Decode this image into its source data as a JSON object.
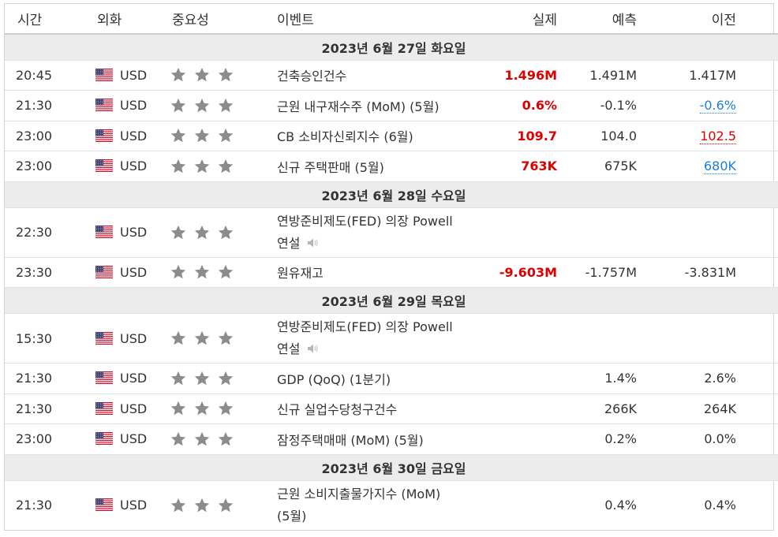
{
  "columns": {
    "time": "시간",
    "currency": "외화",
    "importance": "중요성",
    "event": "이벤트",
    "actual": "실제",
    "forecast": "예측",
    "previous": "이전"
  },
  "colors": {
    "actual_red": "#dd0000",
    "revised_blue": "#1a7fd6",
    "star_gray": "#8c8c8c",
    "date_bg": "#ececec"
  },
  "groups": [
    {
      "date": "2023년 6월 27일 화요일",
      "events": [
        {
          "time": "20:45",
          "currency": "USD",
          "stars": 3,
          "title": "건축승인건수",
          "actual": "1.496M",
          "forecast": "1.491M",
          "previous": "1.417M",
          "previous_style": "",
          "speech": false
        },
        {
          "time": "21:30",
          "currency": "USD",
          "stars": 3,
          "title": "근원 내구재수주 (MoM) (5월)",
          "actual": "0.6%",
          "forecast": "-0.1%",
          "previous": "-0.6%",
          "previous_style": "blue",
          "speech": false
        },
        {
          "time": "23:00",
          "currency": "USD",
          "stars": 3,
          "title": "CB 소비자신뢰지수 (6월)",
          "actual": "109.7",
          "forecast": "104.0",
          "previous": "102.5",
          "previous_style": "red",
          "speech": false
        },
        {
          "time": "23:00",
          "currency": "USD",
          "stars": 3,
          "title": "신규 주택판매 (5월)",
          "actual": "763K",
          "forecast": "675K",
          "previous": "680K",
          "previous_style": "blue",
          "speech": false
        }
      ]
    },
    {
      "date": "2023년 6월 28일 수요일",
      "events": [
        {
          "time": "22:30",
          "currency": "USD",
          "stars": 3,
          "title_line1": "연방준비제도(FED) 의장 Powell",
          "title_line2": "연설",
          "actual": "",
          "forecast": "",
          "previous": "",
          "previous_style": "",
          "speech": true
        },
        {
          "time": "23:30",
          "currency": "USD",
          "stars": 3,
          "title": "원유재고",
          "actual": "-9.603M",
          "forecast": "-1.757M",
          "previous": "-3.831M",
          "previous_style": "",
          "speech": false
        }
      ]
    },
    {
      "date": "2023년 6월 29일 목요일",
      "events": [
        {
          "time": "15:30",
          "currency": "USD",
          "stars": 3,
          "title_line1": "연방준비제도(FED) 의장 Powell",
          "title_line2": "연설",
          "actual": "",
          "forecast": "",
          "previous": "",
          "previous_style": "",
          "speech": true
        },
        {
          "time": "21:30",
          "currency": "USD",
          "stars": 3,
          "title": "GDP (QoQ) (1분기)",
          "actual": "",
          "forecast": "1.4%",
          "previous": "2.6%",
          "previous_style": "",
          "speech": false
        },
        {
          "time": "21:30",
          "currency": "USD",
          "stars": 3,
          "title": "신규 실업수당청구건수",
          "actual": "",
          "forecast": "266K",
          "previous": "264K",
          "previous_style": "",
          "speech": false
        },
        {
          "time": "23:00",
          "currency": "USD",
          "stars": 3,
          "title": "잠정주택매매 (MoM) (5월)",
          "actual": "",
          "forecast": "0.2%",
          "previous": "0.0%",
          "previous_style": "",
          "speech": false
        }
      ]
    },
    {
      "date": "2023년 6월 30일 금요일",
      "events": [
        {
          "time": "21:30",
          "currency": "USD",
          "stars": 3,
          "title_line1": "근원 소비지출물가지수 (MoM)",
          "title_line2": "(5월)",
          "actual": "",
          "forecast": "0.4%",
          "previous": "0.4%",
          "previous_style": "",
          "speech": false
        }
      ]
    }
  ]
}
